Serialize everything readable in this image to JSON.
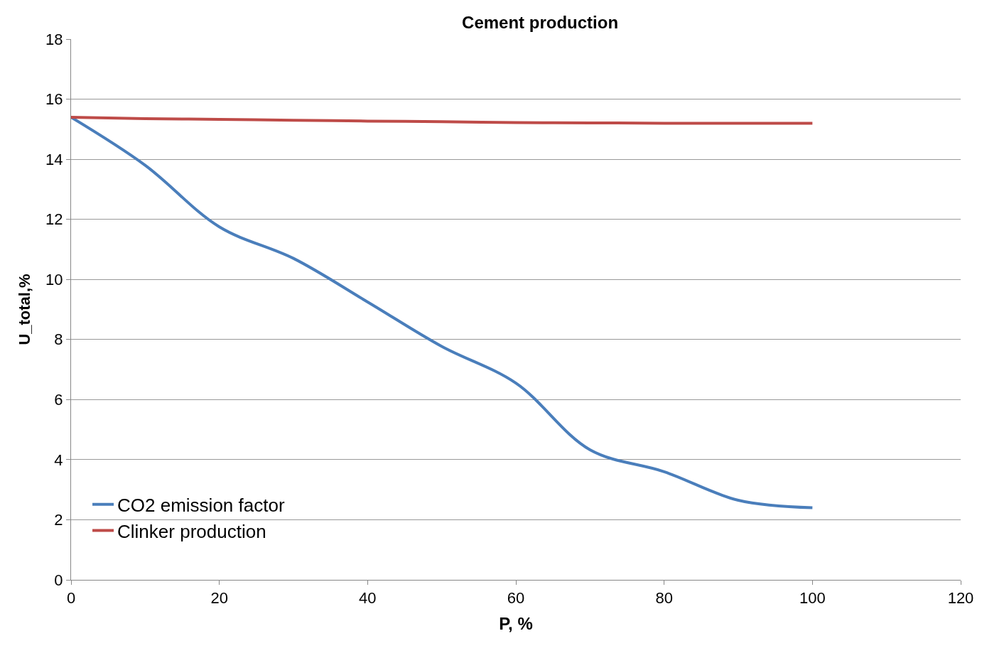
{
  "chart_data": {
    "type": "line",
    "title": "Cement production",
    "xlabel": "P, %",
    "ylabel": "U_total,%",
    "x": [
      0,
      10,
      20,
      30,
      40,
      50,
      60,
      70,
      80,
      90,
      100
    ],
    "series": [
      {
        "name": "CO2 emission factor",
        "color": "#4a7ebb",
        "values": [
          15.4,
          13.8,
          11.75,
          10.7,
          9.25,
          7.77,
          6.55,
          4.33,
          3.6,
          2.65,
          2.4
        ]
      },
      {
        "name": "Clinker production",
        "color": "#be4b48",
        "values": [
          15.4,
          15.35,
          15.33,
          15.3,
          15.27,
          15.25,
          15.22,
          15.21,
          15.2,
          15.2,
          15.2
        ]
      }
    ],
    "xlim": [
      0,
      120
    ],
    "xticks": [
      0,
      20,
      40,
      60,
      80,
      100,
      120
    ],
    "ylim": [
      0,
      18
    ],
    "yticks": [
      0,
      2,
      4,
      6,
      8,
      10,
      12,
      14,
      16,
      18
    ],
    "grid": "y",
    "legend": "bottom left",
    "marker": "none",
    "line_style": "solid"
  }
}
